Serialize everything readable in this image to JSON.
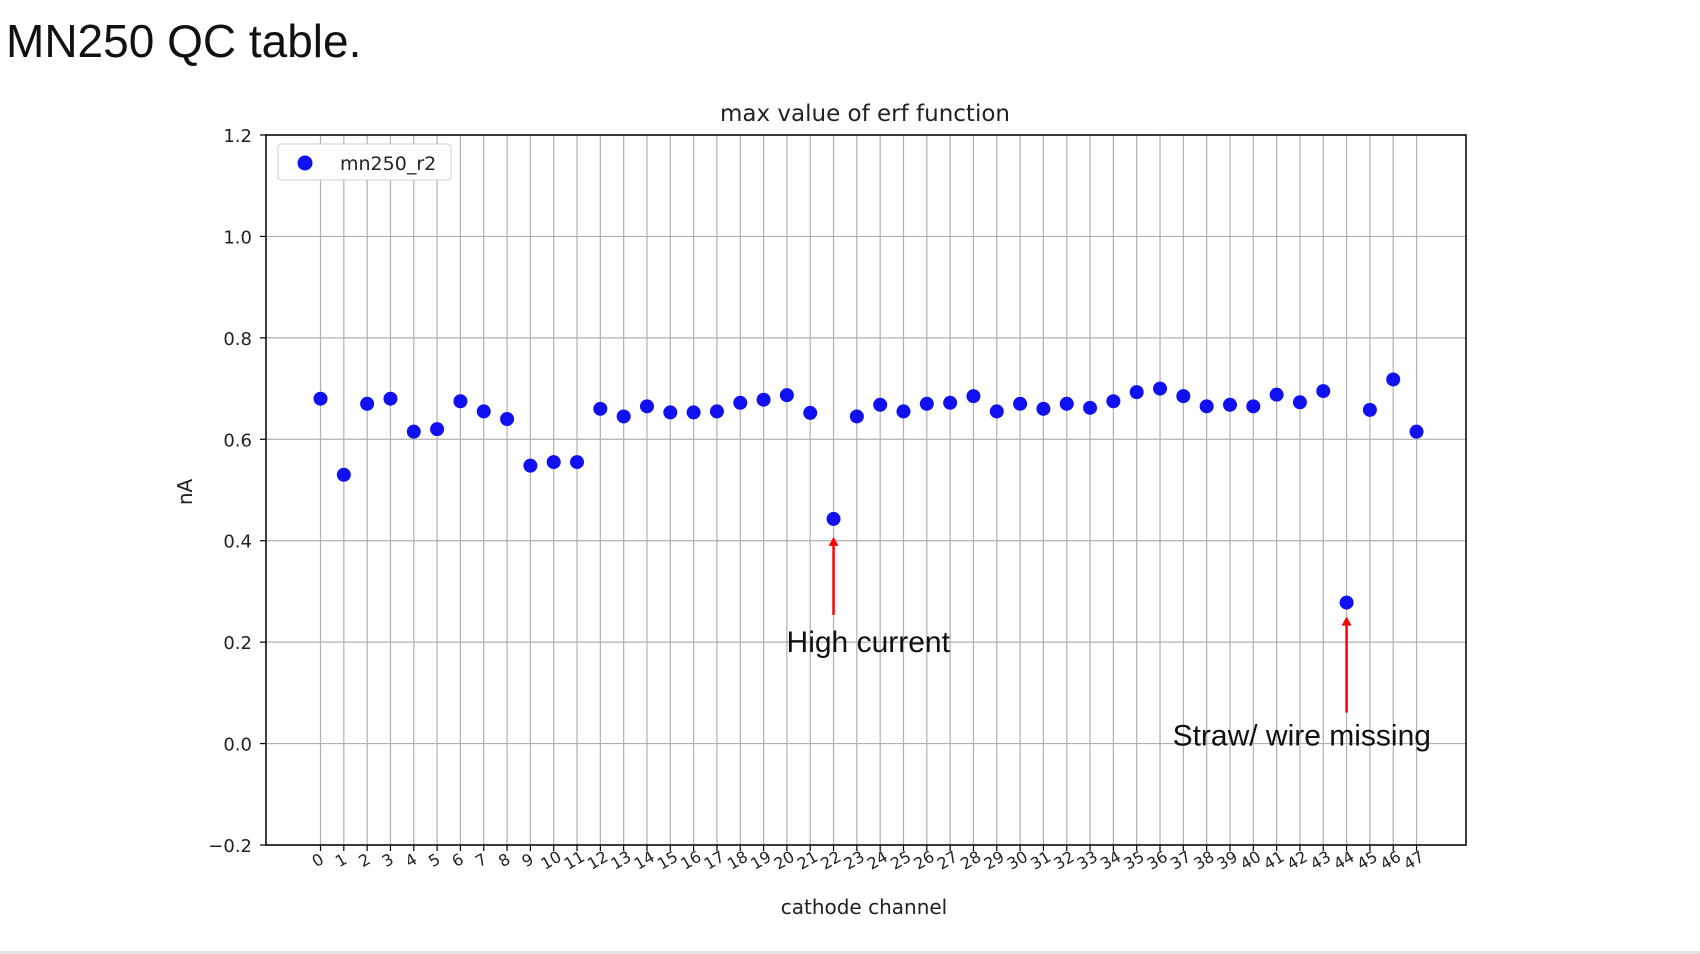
{
  "slide": {
    "title": "MN250 QC table."
  },
  "chart_data": {
    "type": "scatter",
    "title": "max value of erf function",
    "xlabel": "cathode channel",
    "ylabel": "nA",
    "ylim": [
      -0.2,
      1.2
    ],
    "yticks": [
      -0.2,
      0.0,
      0.2,
      0.4,
      0.6,
      0.8,
      1.0,
      1.2
    ],
    "ytick_labels": [
      "−0.2",
      "0.0",
      "0.2",
      "0.4",
      "0.6",
      "0.8",
      "1.0",
      "1.2"
    ],
    "grid": true,
    "legend_position": "top-left",
    "series": [
      {
        "name": "mn250_r2",
        "color": "#1010f0",
        "x": [
          0,
          1,
          2,
          3,
          4,
          5,
          6,
          7,
          8,
          9,
          10,
          11,
          12,
          13,
          14,
          15,
          16,
          17,
          18,
          19,
          20,
          21,
          22,
          23,
          24,
          25,
          26,
          27,
          28,
          29,
          30,
          31,
          32,
          33,
          34,
          35,
          36,
          37,
          38,
          39,
          40,
          41,
          42,
          43,
          44,
          45,
          46,
          47
        ],
        "y": [
          0.68,
          0.53,
          0.67,
          0.68,
          0.615,
          0.62,
          0.675,
          0.655,
          0.64,
          0.548,
          0.555,
          0.555,
          0.66,
          0.645,
          0.665,
          0.653,
          0.653,
          0.655,
          0.672,
          0.678,
          0.687,
          0.652,
          0.443,
          0.645,
          0.668,
          0.655,
          0.67,
          0.672,
          0.685,
          0.655,
          0.67,
          0.66,
          0.67,
          0.662,
          0.675,
          0.693,
          0.7,
          0.685,
          0.665,
          0.668,
          0.665,
          0.688,
          0.673,
          0.695,
          0.278,
          0.658,
          0.718,
          0.615
        ]
      }
    ],
    "annotations": [
      {
        "text": "High current",
        "x": 22,
        "y": 0.443,
        "arrow_color": "#ff0000"
      },
      {
        "text": "Straw/ wire missing",
        "x": 44,
        "y": 0.278,
        "arrow_color": "#ff0000"
      }
    ]
  }
}
